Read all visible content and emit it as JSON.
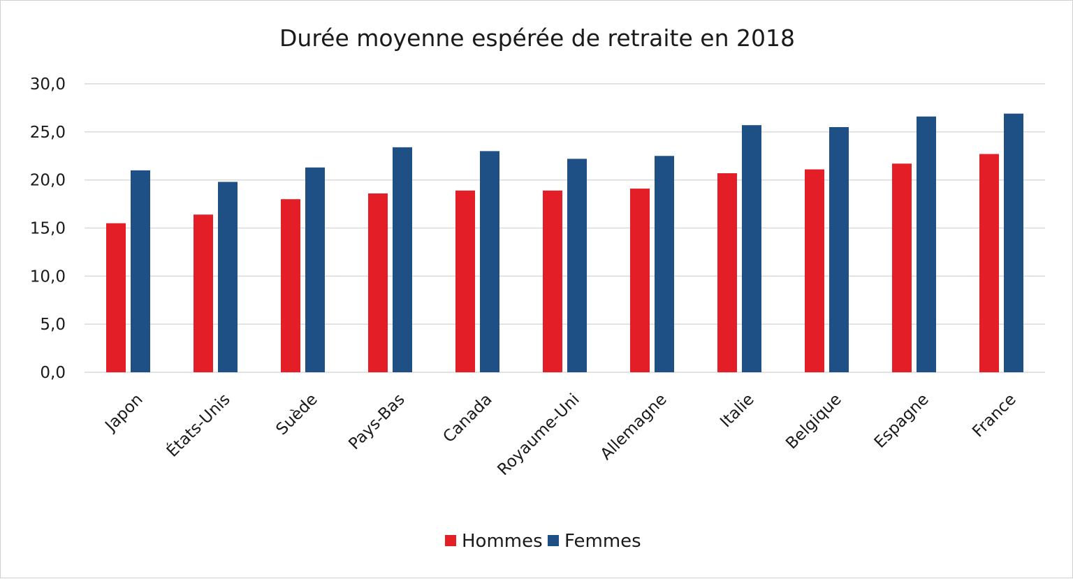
{
  "chart_data": {
    "type": "bar",
    "title": "Durée moyenne espérée de retraite en 2018",
    "categories": [
      "Japon",
      "États-Unis",
      "Suède",
      "Pays-Bas",
      "Canada",
      "Royaume-Uni",
      "Allemagne",
      "Italie",
      "Belgique",
      "Espagne",
      "France"
    ],
    "series": [
      {
        "name": "Hommes",
        "color": "#e41e26",
        "values": [
          15.5,
          16.4,
          18.0,
          18.6,
          18.9,
          18.9,
          19.1,
          20.7,
          21.1,
          21.7,
          22.7
        ]
      },
      {
        "name": "Femmes",
        "color": "#1f5085",
        "values": [
          21.0,
          19.8,
          21.3,
          23.4,
          23.0,
          22.2,
          22.5,
          25.7,
          25.5,
          26.6,
          26.9
        ]
      }
    ],
    "xlabel": "",
    "ylabel": "",
    "ylim": [
      0,
      30
    ],
    "yticks": [
      "0,0",
      "5,0",
      "10,0",
      "15,0",
      "20,0",
      "25,0",
      "30,0"
    ],
    "grid": true,
    "legend_position": "bottom"
  }
}
